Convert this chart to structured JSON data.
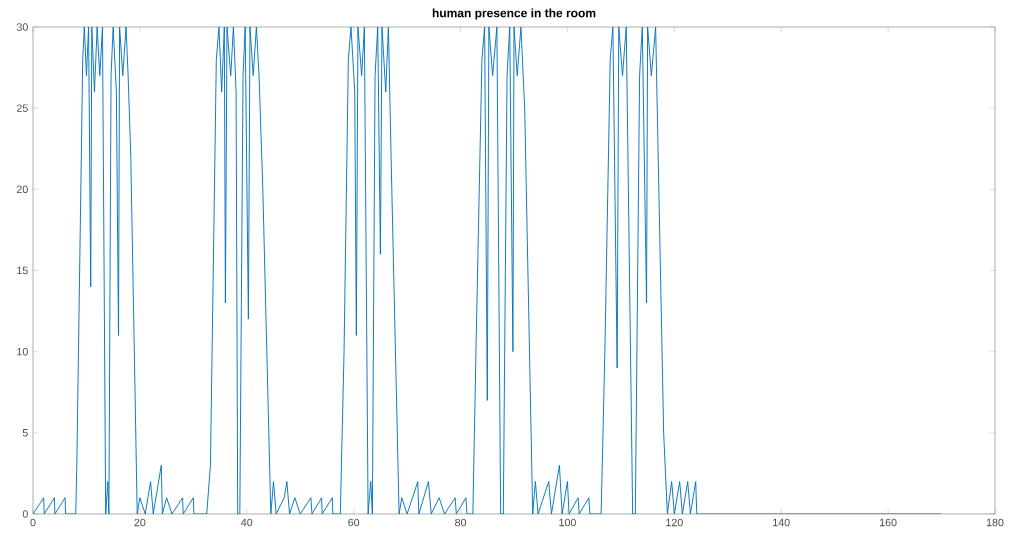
{
  "chart_data": {
    "type": "line",
    "title": "human presence in the room",
    "x": [
      0,
      2,
      2.1,
      4,
      4.1,
      6,
      6.1,
      8,
      8.2,
      9.3,
      9.6,
      10,
      10.4,
      10.8,
      11,
      11.5,
      12,
      12.5,
      13,
      13.6,
      14,
      14.2,
      14.6,
      15,
      15.6,
      16,
      16.2,
      16.8,
      17.4,
      17.8,
      18.3,
      19.5,
      20,
      21,
      21.5,
      22,
      22.5,
      24,
      24.2,
      25,
      26,
      28,
      28.1,
      30,
      30.1,
      32.5,
      33.2,
      34.3,
      34.8,
      35.3,
      35.8,
      36,
      36.3,
      37,
      37.5,
      38,
      38.3,
      38.7,
      39.3,
      39.7,
      40.3,
      40.6,
      41.2,
      41.8,
      42.3,
      43,
      44.5,
      45,
      45.5,
      47,
      47.5,
      48,
      49,
      50,
      52,
      52.2,
      54,
      54.1,
      56,
      56.1,
      57.5,
      58.2,
      59,
      59.5,
      60.2,
      60.5,
      60.8,
      61.5,
      62,
      62.7,
      63.2,
      63.5,
      64,
      64.5,
      65,
      65.3,
      66,
      66.5,
      67,
      68.5,
      69,
      70,
      72,
      72.2,
      74,
      74.5,
      76,
      77,
      79,
      79.2,
      81,
      81.2,
      82.3,
      83,
      84,
      84.5,
      85,
      85.3,
      86,
      86.8,
      87.5,
      88,
      88.7,
      89.2,
      89.8,
      90,
      90.6,
      91.3,
      92,
      93.5,
      94,
      94.5,
      96.5,
      97,
      98.5,
      99,
      100,
      100.3,
      102,
      102.2,
      104,
      104.2,
      106.3,
      107,
      108,
      108.5,
      109.3,
      109.6,
      110.3,
      111,
      112.2,
      112.7,
      113.5,
      114,
      114.8,
      115,
      115.7,
      116.5,
      118,
      118.7,
      119.5,
      120,
      121,
      121.5,
      122.5,
      123,
      124,
      124.2,
      170
    ],
    "series": [
      {
        "color": "#0072bd",
        "values": [
          0,
          1,
          0,
          1,
          0,
          1,
          0,
          0,
          3,
          28,
          30,
          27,
          30,
          14,
          30,
          26,
          30,
          27,
          30,
          0,
          2,
          0,
          27,
          30,
          26,
          11,
          30,
          27,
          30,
          27,
          22,
          0,
          1,
          0,
          1,
          2,
          0,
          3,
          0,
          1,
          0,
          1,
          0,
          1,
          0,
          0,
          3,
          28,
          30,
          26,
          30,
          13,
          30,
          27,
          30,
          26,
          0,
          0,
          27,
          30,
          12,
          30,
          27,
          30,
          27,
          20,
          0,
          2,
          0,
          1,
          2,
          0,
          1,
          0,
          1,
          0,
          1,
          0,
          1,
          0,
          0,
          10,
          28,
          30,
          26,
          11,
          30,
          27,
          30,
          0,
          2,
          0,
          27,
          30,
          16,
          30,
          26,
          30,
          22,
          0,
          1,
          0,
          2,
          0,
          2,
          0,
          1,
          0,
          1,
          0,
          1,
          0,
          0,
          12,
          28,
          30,
          7,
          30,
          27,
          30,
          0,
          0,
          27,
          30,
          10,
          30,
          27,
          30,
          25,
          0,
          2,
          0,
          2,
          0,
          3,
          0,
          2,
          0,
          1,
          0,
          1,
          0,
          0,
          10,
          28,
          30,
          9,
          30,
          27,
          30,
          0,
          0,
          27,
          30,
          13,
          30,
          27,
          30,
          5,
          0,
          2,
          0,
          2,
          0,
          2,
          0,
          2,
          0,
          0
        ]
      }
    ],
    "xlim": [
      0,
      180
    ],
    "xticks": [
      0,
      20,
      40,
      60,
      80,
      100,
      120,
      140,
      160,
      180
    ],
    "ylim": [
      0,
      30
    ],
    "yticks": [
      0,
      5,
      10,
      15,
      20,
      25,
      30
    ]
  }
}
